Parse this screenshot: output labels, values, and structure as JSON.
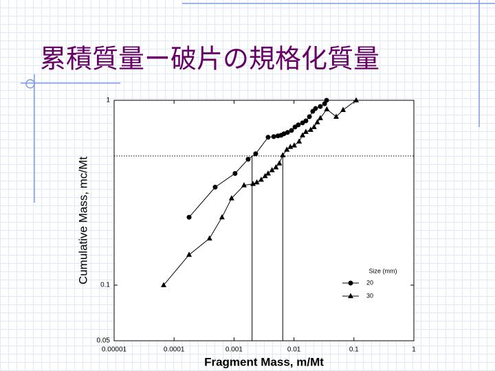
{
  "slide_title": "累積質量ー破片の規格化質量",
  "chart_data": {
    "type": "scatter",
    "x_label": "Fragment Mass,  m/Mt",
    "y_label": "Cumulative Mass,  mc/Mt",
    "x_log": true,
    "y_log": true,
    "xlim": [
      1e-05,
      1
    ],
    "ylim": [
      0.05,
      1
    ],
    "xticks": [
      1e-05,
      0.0001,
      0.001,
      0.01,
      0.1,
      1
    ],
    "yticks": [
      0.05,
      0.1,
      1
    ],
    "legend_title": "Size (mm)",
    "legend_position": "lower right",
    "reference_hline": 0.5,
    "reference_vlines": [
      0.002,
      0.0065
    ],
    "series": [
      {
        "name": "20",
        "color": "#000000",
        "marker": "circle",
        "x": [
          0.000178,
          0.000485,
          0.00104,
          0.00172,
          0.0023,
          0.0037,
          0.0046,
          0.0054,
          0.0061,
          0.0068,
          0.0078,
          0.0091,
          0.0104,
          0.0118,
          0.0139,
          0.0158,
          0.0181,
          0.0206,
          0.0229,
          0.0275,
          0.0324,
          0.035
        ],
        "values": [
          0.233,
          0.339,
          0.402,
          0.48,
          0.514,
          0.631,
          0.636,
          0.642,
          0.647,
          0.659,
          0.67,
          0.687,
          0.717,
          0.736,
          0.755,
          0.774,
          0.815,
          0.872,
          0.903,
          0.926,
          0.958,
          1.0
        ]
      },
      {
        "name": "30",
        "color": "#000000",
        "marker": "triangle",
        "x": [
          6.7e-05,
          0.000178,
          0.00039,
          0.00063,
          0.00091,
          0.00147,
          0.00207,
          0.0024,
          0.00284,
          0.0033,
          0.0037,
          0.0043,
          0.005,
          0.0057,
          0.0065,
          0.0076,
          0.0087,
          0.0101,
          0.0122,
          0.0139,
          0.0158,
          0.019,
          0.0216,
          0.0245,
          0.0275,
          0.0353,
          0.0506,
          0.066,
          0.109
        ],
        "values": [
          0.1,
          0.146,
          0.179,
          0.233,
          0.295,
          0.347,
          0.353,
          0.36,
          0.372,
          0.389,
          0.402,
          0.419,
          0.434,
          0.456,
          0.505,
          0.541,
          0.56,
          0.57,
          0.599,
          0.647,
          0.675,
          0.693,
          0.717,
          0.761,
          0.801,
          0.895,
          0.815,
          0.887,
          1.0
        ]
      }
    ]
  }
}
